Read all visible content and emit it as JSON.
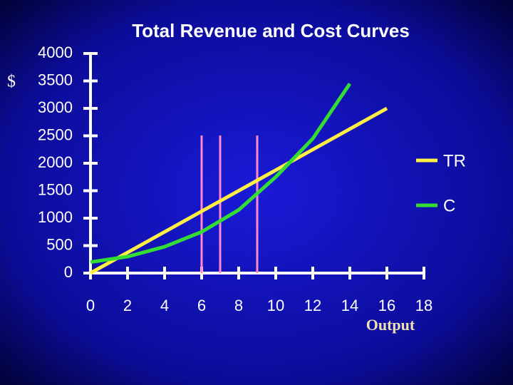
{
  "chart_data": {
    "type": "line",
    "title": "Total Revenue and Cost Curves",
    "y_label": "$",
    "x_label": "Output",
    "x": [
      0,
      2,
      4,
      6,
      8,
      10,
      12,
      14,
      16
    ],
    "series": [
      {
        "name": "TR",
        "color": "#ffee44",
        "values": [
          0,
          375,
          750,
          1125,
          1500,
          1875,
          2250,
          2625,
          3000
        ]
      },
      {
        "name": "C",
        "color": "#33dd33",
        "values": [
          200,
          300,
          480,
          750,
          1150,
          1750,
          2450,
          3450,
          null
        ]
      }
    ],
    "vlines": [
      6,
      7,
      9
    ],
    "vline_color": "#ff88cc",
    "xlim": [
      0,
      18
    ],
    "xticks": [
      0,
      2,
      4,
      6,
      8,
      10,
      12,
      14,
      16,
      18
    ],
    "ylim": [
      0,
      4000
    ],
    "yticks": [
      0,
      500,
      1000,
      1500,
      2000,
      2500,
      3000,
      3500,
      4000
    ],
    "legend": "right"
  }
}
